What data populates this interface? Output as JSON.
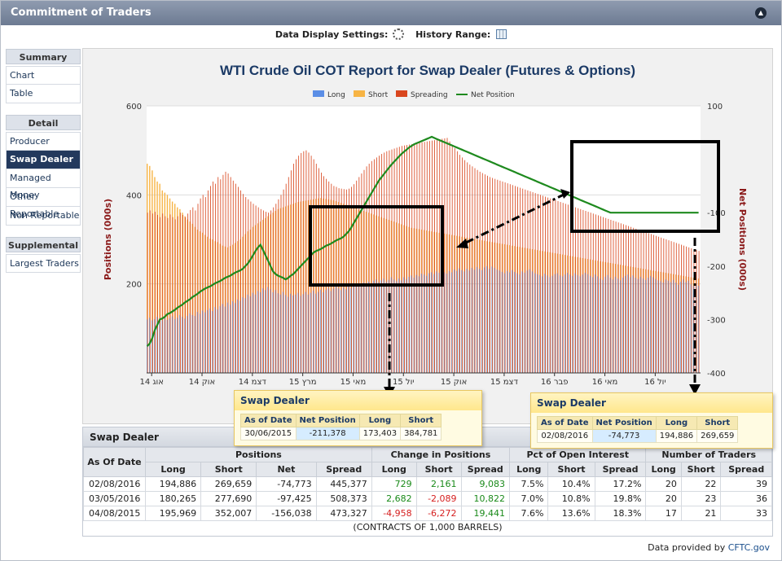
{
  "window": {
    "title": "Commitment of Traders",
    "collapse_glyph": "▲"
  },
  "settings": {
    "display_label": "Data Display Settings:",
    "history_label": "History Range:"
  },
  "sidebar": {
    "sections": [
      {
        "title": "Summary",
        "items": [
          {
            "label": "Chart",
            "active": false
          },
          {
            "label": "Table",
            "active": false
          }
        ]
      },
      {
        "title": "Detail",
        "items": [
          {
            "label": "Producer",
            "active": false
          },
          {
            "label": "Swap Dealer",
            "active": true
          },
          {
            "label": "Managed Money",
            "active": false
          },
          {
            "label": "Other Reportable",
            "active": false
          },
          {
            "label": "Non Reportable",
            "active": false
          }
        ]
      },
      {
        "title": "Supplemental",
        "items": [
          {
            "label": "Largest Traders",
            "active": false
          }
        ]
      }
    ]
  },
  "chart_data": {
    "type": "bar",
    "title": "WTI Crude Oil COT Report for Swap Dealer (Futures & Options)",
    "ylabel": "Positions (000s)",
    "y2label": "Net Positions (000s)",
    "ylim": [
      0,
      600
    ],
    "y2lim": [
      -400,
      100
    ],
    "yticks": [
      200,
      400,
      600
    ],
    "y2ticks": [
      100,
      -100,
      -200,
      -300,
      -400
    ],
    "x_tick_labels": [
      "אוג 14",
      "אוק 14",
      "דצמ 14",
      "מרץ 15",
      "מאי 15",
      "יול 15",
      "אוק 15",
      "דצמ 15",
      "פבר 16",
      "מאי 16",
      "יול 16"
    ],
    "legend": [
      "Long",
      "Short",
      "Spreading",
      "Net Position"
    ],
    "legend_position": "top",
    "colors": {
      "long": "#5b8ee6",
      "short": "#f7b444",
      "spreading": "#d9461e",
      "net": "#1e8a1e"
    },
    "series": [
      {
        "name": "Long",
        "values": [
          120,
          124,
          118,
          121,
          126,
          122,
          118,
          125,
          119,
          123,
          127,
          121,
          124,
          130,
          126,
          122,
          128,
          134,
          130,
          128,
          137,
          133,
          140,
          136,
          141,
          145,
          139,
          148,
          143,
          150,
          155,
          149,
          158,
          153,
          161,
          157,
          165,
          162,
          170,
          168,
          176,
          172,
          180,
          176,
          184,
          181,
          190,
          186,
          193,
          188,
          181,
          186,
          179,
          176,
          182,
          175,
          171,
          178,
          174,
          176,
          180,
          173,
          177,
          182,
          176,
          180,
          185,
          178,
          182,
          187,
          181,
          186,
          190,
          184,
          189,
          195,
          190,
          186,
          192,
          188,
          196,
          191,
          195,
          200,
          194,
          199,
          203,
          198,
          205,
          200,
          207,
          210,
          204,
          208,
          212,
          205,
          209,
          215,
          210,
          206,
          212,
          208,
          215,
          211,
          216,
          219,
          214,
          220,
          217,
          223,
          221,
          218,
          224,
          226,
          222,
          228,
          225,
          230,
          226,
          223,
          229,
          226,
          232,
          229,
          235,
          231,
          228,
          234,
          230,
          236,
          232,
          238,
          234,
          231,
          237,
          240,
          234,
          239,
          236,
          232,
          230,
          227,
          224,
          229,
          226,
          231,
          227,
          224,
          221,
          228,
          225,
          230,
          233,
          228,
          224,
          222,
          220,
          217,
          223,
          219,
          215,
          218,
          222,
          224,
          219,
          217,
          221,
          225,
          221,
          218,
          224,
          220,
          217,
          221,
          225,
          222,
          218,
          215,
          221,
          217,
          212,
          209,
          216,
          220,
          214,
          210,
          216,
          212,
          208,
          214,
          218,
          221,
          215,
          219,
          214,
          211,
          216,
          212,
          209,
          214,
          218,
          215,
          211,
          208,
          206,
          203,
          210,
          207,
          204,
          209,
          203,
          198,
          205,
          210,
          204,
          207,
          199,
          195,
          199,
          196
        ]
      },
      {
        "name": "Short",
        "values": [
          470,
          465,
          455,
          440,
          430,
          425,
          410,
          405,
          400,
          392,
          385,
          380,
          372,
          368,
          360,
          352,
          345,
          340,
          335,
          328,
          322,
          318,
          315,
          310,
          306,
          302,
          300,
          296,
          294,
          290,
          286,
          284,
          282,
          285,
          288,
          292,
          296,
          300,
          306,
          312,
          318,
          322,
          328,
          332,
          336,
          340,
          344,
          348,
          352,
          356,
          360,
          364,
          368,
          370,
          372,
          374,
          376,
          378,
          380,
          382,
          384,
          385,
          386,
          387,
          388,
          389,
          390,
          391,
          392,
          393,
          392,
          391,
          390,
          389,
          388,
          386,
          384,
          382,
          380,
          378,
          376,
          374,
          372,
          370,
          368,
          366,
          364,
          362,
          360,
          358,
          356,
          354,
          352,
          350,
          348,
          346,
          344,
          342,
          340,
          338,
          336,
          334,
          332,
          330,
          328,
          326,
          325,
          324,
          323,
          322,
          321,
          320,
          319,
          318,
          317,
          316,
          315,
          314,
          313,
          312,
          311,
          310,
          309,
          308,
          307,
          306,
          305,
          304,
          303,
          302,
          301,
          300,
          299,
          298,
          297,
          296,
          295,
          294,
          293,
          292,
          291,
          290,
          289,
          288,
          287,
          286,
          285,
          284,
          283,
          282,
          281,
          280,
          279,
          278,
          277,
          276,
          275,
          274,
          273,
          272,
          271,
          270,
          269,
          268,
          267,
          266,
          265,
          264,
          263,
          262,
          261,
          260,
          259,
          258,
          257,
          256,
          255,
          254,
          253,
          252,
          251,
          250,
          249,
          248,
          247,
          246,
          245,
          244,
          243,
          242,
          241,
          240,
          239,
          238,
          237,
          236,
          235,
          234,
          233,
          232,
          231,
          230,
          229,
          228,
          227,
          226,
          225,
          224,
          223,
          222,
          221,
          220,
          219,
          218,
          217,
          216,
          215,
          214,
          213,
          212,
          211,
          210,
          209,
          208,
          207,
          206,
          205,
          204,
          203,
          202
        ]
      },
      {
        "name": "Spreading",
        "values": [
          360,
          365,
          358,
          362,
          355,
          350,
          358,
          352,
          348,
          356,
          350,
          345,
          352,
          360,
          355,
          350,
          358,
          366,
          372,
          365,
          380,
          392,
          400,
          395,
          410,
          420,
          430,
          425,
          440,
          435,
          445,
          452,
          448,
          440,
          432,
          425,
          418,
          410,
          402,
          395,
          390,
          385,
          380,
          376,
          372,
          368,
          365,
          362,
          360,
          365,
          372,
          380,
          390,
          400,
          412,
          425,
          440,
          455,
          470,
          480,
          488,
          494,
          498,
          500,
          495,
          488,
          480,
          470,
          460,
          450,
          442,
          436,
          430,
          425,
          420,
          418,
          415,
          414,
          413,
          412,
          414,
          418,
          424,
          432,
          440,
          448,
          456,
          464,
          470,
          476,
          480,
          484,
          488,
          492,
          495,
          498,
          500,
          502,
          504,
          506,
          508,
          510,
          511,
          512,
          513,
          514,
          515,
          516,
          517,
          518,
          519,
          520,
          521,
          522,
          523,
          524,
          525,
          526,
          527,
          528,
          520,
          512,
          505,
          498,
          490,
          484,
          478,
          473,
          468,
          464,
          460,
          456,
          452,
          449,
          446,
          443,
          440,
          438,
          436,
          434,
          432,
          430,
          428,
          426,
          424,
          422,
          420,
          418,
          416,
          414,
          412,
          410,
          408,
          406,
          404,
          402,
          400,
          398,
          396,
          394,
          392,
          390,
          388,
          386,
          384,
          382,
          380,
          378,
          376,
          374,
          372,
          370,
          368,
          366,
          364,
          362,
          360,
          358,
          356,
          354,
          352,
          350,
          348,
          346,
          344,
          342,
          340,
          338,
          336,
          334,
          332,
          330,
          328,
          326,
          324,
          322,
          320,
          318,
          316,
          314,
          312,
          310,
          308,
          306,
          304,
          302,
          300,
          298,
          296,
          294,
          292,
          290,
          288,
          286,
          284,
          282,
          280,
          278,
          276,
          274,
          272,
          270,
          268,
          266
        ]
      },
      {
        "name": "Net Position",
        "values": [
          -350,
          -345,
          -335,
          -320,
          -310,
          -300,
          -298,
          -295,
          -290,
          -288,
          -285,
          -282,
          -278,
          -275,
          -272,
          -268,
          -265,
          -262,
          -258,
          -255,
          -252,
          -248,
          -245,
          -242,
          -240,
          -238,
          -235,
          -232,
          -230,
          -228,
          -225,
          -222,
          -220,
          -218,
          -215,
          -212,
          -210,
          -208,
          -205,
          -200,
          -195,
          -188,
          -180,
          -172,
          -165,
          -160,
          -170,
          -180,
          -190,
          -200,
          -210,
          -215,
          -218,
          -220,
          -222,
          -225,
          -222,
          -218,
          -215,
          -210,
          -205,
          -200,
          -195,
          -190,
          -185,
          -180,
          -175,
          -172,
          -170,
          -168,
          -165,
          -162,
          -160,
          -158,
          -155,
          -152,
          -150,
          -148,
          -145,
          -140,
          -135,
          -128,
          -120,
          -112,
          -104,
          -96,
          -88,
          -80,
          -72,
          -64,
          -56,
          -48,
          -40,
          -34,
          -28,
          -22,
          -16,
          -10,
          -5,
          0,
          5,
          10,
          14,
          18,
          22,
          25,
          28,
          30,
          32,
          34,
          36,
          38,
          40,
          42,
          40,
          38,
          36,
          34,
          32,
          30,
          28,
          26,
          24,
          22,
          20,
          18,
          16,
          14,
          12,
          10,
          8,
          6,
          4,
          2,
          0,
          -2,
          -4,
          -6,
          -8,
          -10,
          -12,
          -14,
          -16,
          -18,
          -20,
          -22,
          -24,
          -26,
          -28,
          -30,
          -32,
          -34,
          -36,
          -38,
          -40,
          -42,
          -44,
          -46,
          -48,
          -50,
          -52,
          -54,
          -56,
          -58,
          -60,
          -62,
          -64,
          -66,
          -68,
          -70,
          -72,
          -74,
          -76,
          -78,
          -80,
          -82,
          -84,
          -86,
          -88,
          -90,
          -92,
          -94,
          -96,
          -98,
          -100,
          -100,
          -100,
          -100,
          -100,
          -100,
          -100,
          -100,
          -100,
          -100,
          -100,
          -100,
          -100,
          -100,
          -100,
          -100,
          -100,
          -100,
          -100,
          -100,
          -100,
          -100,
          -100,
          -100,
          -100,
          -100,
          -100,
          -100,
          -100,
          -100,
          -100,
          -100,
          -100,
          -100,
          -100,
          -100,
          -100,
          -100,
          -100,
          -100
        ]
      }
    ],
    "grid": true
  },
  "tooltips": [
    {
      "title": "Swap Dealer",
      "headers": [
        "As of Date",
        "Net Position",
        "Long",
        "Short"
      ],
      "values": [
        "30/06/2015",
        "-211,378",
        "173,403",
        "384,781"
      ]
    },
    {
      "title": "Swap Dealer",
      "headers": [
        "As of Date",
        "Net Position",
        "Long",
        "Short"
      ],
      "values": [
        "02/08/2016",
        "-74,773",
        "194,886",
        "269,659"
      ]
    }
  ],
  "table": {
    "title": "Swap Dealer",
    "group_headers": {
      "date": "As Of Date",
      "positions": "Positions",
      "change": "Change in Positions",
      "pct": "Pct of Open Interest",
      "traders": "Number of Traders"
    },
    "sub_headers": [
      "Long",
      "Short",
      "Net",
      "Spread",
      "Long",
      "Short",
      "Spread",
      "Long",
      "Short",
      "Spread",
      "Long",
      "Short",
      "Spread"
    ],
    "rows": [
      {
        "date": "02/08/2016",
        "cells": [
          "194,886",
          "269,659",
          "-74,773",
          "445,377",
          "729",
          "2,161",
          "9,083",
          "7.5%",
          "10.4%",
          "17.2%",
          "20",
          "22",
          "39"
        ],
        "signs": [
          "",
          "",
          "",
          "",
          "pos",
          "pos",
          "pos",
          "",
          "",
          "",
          "",
          "",
          ""
        ]
      },
      {
        "date": "03/05/2016",
        "cells": [
          "180,265",
          "277,690",
          "-97,425",
          "508,373",
          "2,682",
          "-2,089",
          "10,822",
          "7.0%",
          "10.8%",
          "19.8%",
          "20",
          "23",
          "36"
        ],
        "signs": [
          "",
          "",
          "",
          "",
          "pos",
          "neg",
          "pos",
          "",
          "",
          "",
          "",
          "",
          ""
        ]
      },
      {
        "date": "04/08/2015",
        "cells": [
          "195,969",
          "352,007",
          "-156,038",
          "473,327",
          "-4,958",
          "-6,272",
          "19,441",
          "7.6%",
          "13.6%",
          "18.3%",
          "17",
          "21",
          "33"
        ],
        "signs": [
          "",
          "",
          "",
          "",
          "neg",
          "neg",
          "pos",
          "",
          "",
          "",
          "",
          "",
          ""
        ]
      }
    ],
    "footer": "(CONTRACTS OF 1,000 BARRELS)"
  },
  "provider": {
    "label": "Data provided by",
    "link": "CFTC.gov"
  }
}
